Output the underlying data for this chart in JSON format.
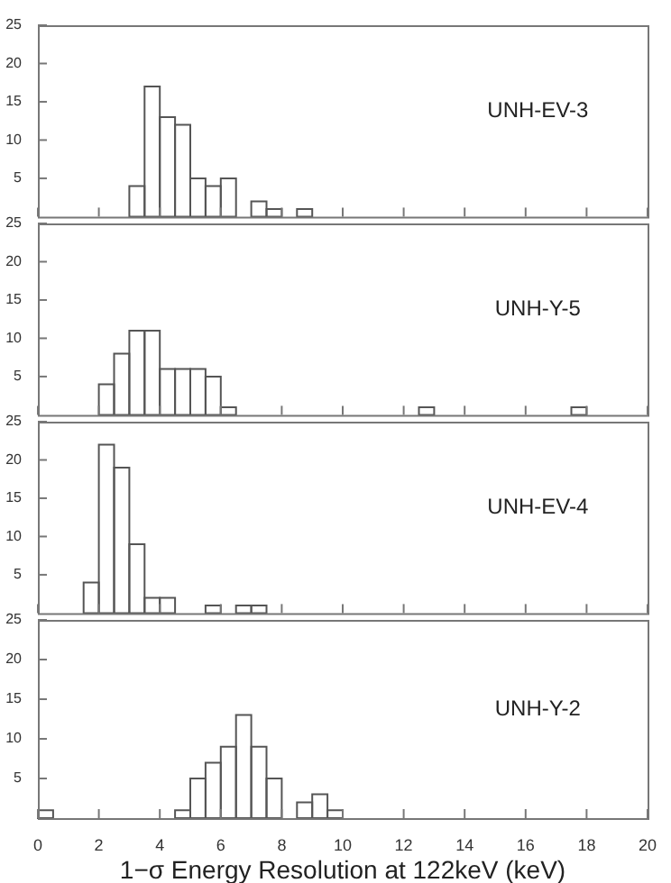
{
  "chart_data": [
    {
      "type": "histogram",
      "bins": [
        0,
        0.5,
        1,
        1.5,
        2,
        2.5,
        3,
        3.5,
        4,
        4.5,
        5,
        5.5,
        6,
        6.5,
        7,
        7.5,
        8,
        8.5,
        9,
        9.5,
        10,
        10.5,
        11,
        11.5,
        12,
        12.5,
        13,
        13.5,
        14,
        14.5,
        15,
        15.5,
        16,
        16.5,
        17,
        17.5,
        18,
        18.5,
        19,
        19.5,
        20
      ],
      "values": [
        0,
        0,
        0,
        0,
        0,
        0,
        4,
        17,
        13,
        12,
        5,
        4,
        5,
        0,
        2,
        1,
        0,
        1,
        0,
        0,
        0,
        0,
        0,
        0,
        0,
        0,
        0,
        0,
        0,
        0,
        0,
        0,
        0,
        0,
        0,
        0,
        0,
        0,
        0,
        0
      ],
      "color": "#555555",
      "xlim": [
        0,
        20
      ],
      "xticks": [
        0,
        2,
        4,
        6,
        8,
        10,
        12,
        14,
        16,
        18,
        20
      ],
      "ylim": [
        0,
        25
      ],
      "yticks": [
        5,
        10,
        15,
        20,
        25
      ],
      "tick_labels": "y",
      "annotations": [
        "UNH-EV-3"
      ]
    },
    {
      "type": "histogram",
      "bins": [
        0,
        0.5,
        1,
        1.5,
        2,
        2.5,
        3,
        3.5,
        4,
        4.5,
        5,
        5.5,
        6,
        6.5,
        7,
        7.5,
        8,
        8.5,
        9,
        9.5,
        10,
        10.5,
        11,
        11.5,
        12,
        12.5,
        13,
        13.5,
        14,
        14.5,
        15,
        15.5,
        16,
        16.5,
        17,
        17.5,
        18,
        18.5,
        19,
        19.5,
        20
      ],
      "values": [
        0,
        0,
        0,
        0,
        4,
        8,
        11,
        11,
        6,
        6,
        6,
        5,
        1,
        0,
        0,
        0,
        0,
        0,
        0,
        0,
        0,
        0,
        0,
        0,
        0,
        1,
        0,
        0,
        0,
        0,
        0,
        0,
        0,
        0,
        0,
        1,
        0,
        0,
        0,
        0
      ],
      "color": "#555555",
      "xlim": [
        0,
        20
      ],
      "xticks": [
        0,
        2,
        4,
        6,
        8,
        10,
        12,
        14,
        16,
        18,
        20
      ],
      "ylim": [
        0,
        25
      ],
      "yticks": [
        5,
        10,
        15,
        20,
        25
      ],
      "tick_labels": "y",
      "annotations": [
        "UNH-Y-5"
      ]
    },
    {
      "type": "histogram",
      "bins": [
        0,
        0.5,
        1,
        1.5,
        2,
        2.5,
        3,
        3.5,
        4,
        4.5,
        5,
        5.5,
        6,
        6.5,
        7,
        7.5,
        8,
        8.5,
        9,
        9.5,
        10,
        10.5,
        11,
        11.5,
        12,
        12.5,
        13,
        13.5,
        14,
        14.5,
        15,
        15.5,
        16,
        16.5,
        17,
        17.5,
        18,
        18.5,
        19,
        19.5,
        20
      ],
      "values": [
        0,
        0,
        0,
        4,
        22,
        19,
        9,
        2,
        2,
        0,
        0,
        1,
        0,
        1,
        1,
        0,
        0,
        0,
        0,
        0,
        0,
        0,
        0,
        0,
        0,
        0,
        0,
        0,
        0,
        0,
        0,
        0,
        0,
        0,
        0,
        0,
        0,
        0,
        0,
        0
      ],
      "color": "#555555",
      "xlim": [
        0,
        20
      ],
      "xticks": [
        0,
        2,
        4,
        6,
        8,
        10,
        12,
        14,
        16,
        18,
        20
      ],
      "ylim": [
        0,
        25
      ],
      "yticks": [
        5,
        10,
        15,
        20,
        25
      ],
      "tick_labels": "y",
      "annotations": [
        "UNH-EV-4"
      ]
    },
    {
      "type": "histogram",
      "bins": [
        0,
        0.5,
        1,
        1.5,
        2,
        2.5,
        3,
        3.5,
        4,
        4.5,
        5,
        5.5,
        6,
        6.5,
        7,
        7.5,
        8,
        8.5,
        9,
        9.5,
        10,
        10.5,
        11,
        11.5,
        12,
        12.5,
        13,
        13.5,
        14,
        14.5,
        15,
        15.5,
        16,
        16.5,
        17,
        17.5,
        18,
        18.5,
        19,
        19.5,
        20
      ],
      "values": [
        1,
        0,
        0,
        0,
        0,
        0,
        0,
        0,
        0,
        1,
        5,
        7,
        9,
        13,
        9,
        5,
        0,
        2,
        3,
        1,
        0,
        0,
        0,
        0,
        0,
        0,
        0,
        0,
        0,
        0,
        0,
        0,
        0,
        0,
        0,
        0,
        0,
        0,
        0,
        0
      ],
      "color": "#555555",
      "xlim": [
        0,
        20
      ],
      "xticks": [
        0,
        2,
        4,
        6,
        8,
        10,
        12,
        14,
        16,
        18,
        20
      ],
      "ylim": [
        0,
        25
      ],
      "yticks": [
        5,
        10,
        15,
        20,
        25
      ],
      "xlabel": "1−σ Energy Resolution at 122keV (keV)",
      "annotations": [
        "UNH-Y-2"
      ]
    }
  ]
}
